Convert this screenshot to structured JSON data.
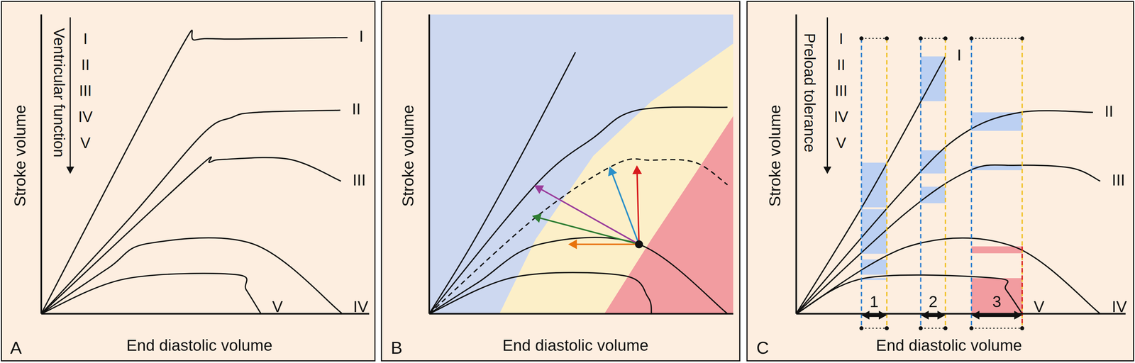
{
  "chart_data": [
    {
      "type": "line",
      "panel": "A",
      "x_label": "End diastolic volume",
      "y_label": "Stroke volume",
      "xlim": [
        0,
        100
      ],
      "ylim": [
        0,
        100
      ],
      "tick_labels": false,
      "scale_label": "Ventricular function",
      "scale_items": [
        "I",
        "II",
        "III",
        "IV",
        "V"
      ],
      "series": [
        {
          "name": "I",
          "color": "#111111",
          "x": [
            0,
            41.5,
            47,
            60,
            93.4
          ],
          "values": [
            0,
            86.7,
            91.5,
            91.8,
            92.3
          ]
        },
        {
          "name": "II",
          "color": "#111111",
          "x": [
            0,
            27.2,
            49.2,
            58.1,
            65.8,
            91.2
          ],
          "values": [
            0,
            32.2,
            60,
            65.6,
            67.3,
            68
          ]
        },
        {
          "name": "III",
          "color": "#111111",
          "x": [
            0,
            47,
            51.4,
            56.1,
            75.7,
            91.4
          ],
          "values": [
            0,
            48,
            50.6,
            51.6,
            51.6,
            44.3
          ]
        },
        {
          "name": "IV",
          "color": "#111111",
          "x": [
            0,
            20.5,
            32.7,
            64.9,
            91.6
          ],
          "values": [
            0,
            15.3,
            23.5,
            23.2,
            0.2
          ]
        },
        {
          "name": "V",
          "color": "#111111",
          "x": [
            0,
            25.4,
            59.2,
            62.5,
            66.9
          ],
          "values": [
            0,
            11.6,
            13.1,
            8,
            0.2
          ]
        }
      ]
    },
    {
      "type": "line",
      "panel": "B",
      "x_label": "End diastolic volume",
      "y_label": "Stroke volume",
      "xlim": [
        0,
        100
      ],
      "ylim": [
        0,
        100
      ],
      "tick_labels": false,
      "zones": [
        {
          "color": "#cdd8f0",
          "x": [
            0,
            0,
            100
          ],
          "y": [
            0,
            100,
            100
          ]
        },
        {
          "color": "#fcefc8",
          "x": [
            23.1,
            35,
            54,
            73.1,
            100
          ],
          "y": [
            0,
            24.9,
            52.8,
            71,
            90.3
          ]
        },
        {
          "color": "#f29ca0",
          "x": [
            57.6,
            73.1,
            87.4,
            100
          ],
          "y": [
            0,
            24.9,
            46.7,
            66.1
          ]
        }
      ],
      "series": [
        {
          "color": "#111111",
          "line_style": "solid",
          "x": [
            0,
            13.6,
            30.2,
            48.1
          ],
          "values": [
            0,
            22.5,
            52.8,
            87.4
          ]
        },
        {
          "color": "#111111",
          "line_style": "solid",
          "x": [
            0,
            35,
            54,
            68.3,
            98.1
          ],
          "values": [
            0,
            43.1,
            58.8,
            68,
            69
          ]
        },
        {
          "color": "#111111",
          "line_style": "dashed",
          "x": [
            0,
            35,
            61.2,
            73.1,
            87.4,
            98.1
          ],
          "values": [
            0,
            32.2,
            49.9,
            51.3,
            50.6,
            43.1
          ]
        },
        {
          "color": "#111111",
          "line_style": "solid",
          "x": [
            0,
            16,
            36.2,
            69,
            98.1
          ],
          "values": [
            0,
            10.4,
            23.2,
            23.2,
            0
          ]
        },
        {
          "color": "#111111",
          "line_style": "solid",
          "x": [
            0,
            28.3,
            63.6,
            71.9,
            73.1
          ],
          "values": [
            0,
            12.3,
            12.8,
            5.6,
            0
          ]
        }
      ],
      "point": {
        "x": 69,
        "y": 23.2
      },
      "arrows": [
        {
          "color": "#9b3d9b",
          "x": [
            69,
            34.5
          ],
          "y": [
            23.2,
            42.9
          ]
        },
        {
          "color": "#2e7d32",
          "x": [
            69,
            33.8
          ],
          "y": [
            23.2,
            32.7
          ]
        },
        {
          "color": "#e8730c",
          "x": [
            69,
            45.7
          ],
          "y": [
            23.2,
            23.2
          ]
        },
        {
          "color": "#2a8fc9",
          "x": [
            69,
            59.3
          ],
          "y": [
            23.2,
            49.2
          ]
        },
        {
          "color": "#d7191c",
          "x": [
            69,
            68.3
          ],
          "y": [
            23.2,
            49.6
          ]
        }
      ]
    },
    {
      "type": "line",
      "panel": "C",
      "x_label": "End diastolic volume",
      "y_label": "Stroke volume",
      "xlim": [
        0,
        100
      ],
      "ylim": [
        0,
        100
      ],
      "tick_labels": false,
      "scale_label": "Preload tolerance",
      "scale_items": [
        "I",
        "II",
        "III",
        "IV",
        "V"
      ],
      "series": [
        {
          "name": "I",
          "color": "#111111",
          "x": [
            0,
            22,
            45.3
          ],
          "values": [
            0,
            39.5,
            86
          ]
        },
        {
          "name": "II",
          "color": "#111111",
          "x": [
            0,
            33,
            50.5,
            68.1,
            90.1
          ],
          "values": [
            0,
            41.9,
            60,
            67.3,
            67.3
          ]
        },
        {
          "name": "III",
          "color": "#111111",
          "x": [
            0,
            33,
            52.7,
            65.9,
            83.5,
            92.3
          ],
          "values": [
            0,
            33.4,
            47.9,
            49.6,
            48.7,
            44.3
          ]
        },
        {
          "name": "IV",
          "color": "#111111",
          "x": [
            0,
            34.1,
            65.9,
            92.3
          ],
          "values": [
            0,
            22.5,
            22.5,
            0
          ]
        },
        {
          "name": "V",
          "color": "#111111",
          "x": [
            0,
            20.9,
            60.4,
            63.7,
            68.6
          ],
          "values": [
            0,
            11.9,
            11.9,
            8,
            0
          ]
        }
      ],
      "windows": [
        {
          "label": "1",
          "x": [
            19.8,
            27.5
          ]
        },
        {
          "label": "2",
          "x": [
            37.8,
            45.3
          ]
        },
        {
          "label": "3",
          "x": [
            53.2,
            68.6
          ]
        }
      ]
    }
  ]
}
